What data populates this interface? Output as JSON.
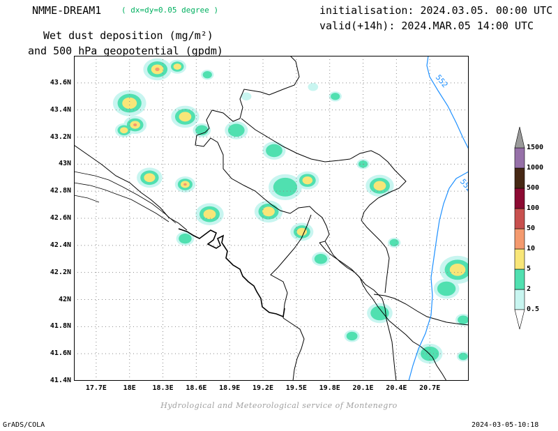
{
  "header": {
    "model": "NMME-DREAM1",
    "resolution": "( dx=dy=0.05 degree )",
    "initialisation": "initialisation: 2024.03.05. 00:00 UTC",
    "valid": "valid(+14h): 2024.MAR.05 14:00 UTC",
    "title_line1": "Wet dust deposition (mg/m²)",
    "title_line2": "and 500 hPa geopotential (gpdm)"
  },
  "map": {
    "lon_range": [
      17.5,
      21.05
    ],
    "lat_range": [
      41.4,
      43.8
    ],
    "lon_labels": [
      "17.7E",
      "18E",
      "18.3E",
      "18.6E",
      "18.9E",
      "19.2E",
      "19.5E",
      "19.8E",
      "20.1E",
      "20.4E",
      "20.7E"
    ],
    "lon_ticks": [
      17.7,
      18.0,
      18.3,
      18.6,
      18.9,
      19.2,
      19.5,
      19.8,
      20.1,
      20.4,
      20.7
    ],
    "lat_labels": [
      "41.4N",
      "41.6N",
      "41.8N",
      "42N",
      "42.2N",
      "42.4N",
      "42.6N",
      "42.8N",
      "43N",
      "43.2N",
      "43.4N",
      "43.6N"
    ],
    "lat_ticks": [
      41.4,
      41.6,
      41.8,
      42.0,
      42.2,
      42.4,
      42.6,
      42.8,
      43.0,
      43.2,
      43.4,
      43.6
    ],
    "contour_labels": [
      {
        "text": "552",
        "lon": 20.75,
        "lat": 43.64
      },
      {
        "text": "552",
        "lon": 20.97,
        "lat": 42.87
      }
    ],
    "contour_color": "#1e90ff",
    "grid": "dotted"
  },
  "deposition_blobs": [
    {
      "lon": 18.25,
      "lat": 43.7,
      "r": 0.11,
      "level": 4
    },
    {
      "lon": 18.43,
      "lat": 43.72,
      "r": 0.07,
      "level": 3
    },
    {
      "lon": 18.7,
      "lat": 43.66,
      "r": 0.05,
      "level": 2
    },
    {
      "lon": 18.0,
      "lat": 43.45,
      "r": 0.13,
      "level": 3
    },
    {
      "lon": 17.95,
      "lat": 43.25,
      "r": 0.07,
      "level": 3
    },
    {
      "lon": 18.05,
      "lat": 43.29,
      "r": 0.09,
      "level": 4
    },
    {
      "lon": 18.5,
      "lat": 43.35,
      "r": 0.11,
      "level": 3
    },
    {
      "lon": 18.65,
      "lat": 43.25,
      "r": 0.07,
      "level": 2
    },
    {
      "lon": 18.96,
      "lat": 43.25,
      "r": 0.09,
      "level": 2
    },
    {
      "lon": 19.3,
      "lat": 43.1,
      "r": 0.09,
      "level": 2
    },
    {
      "lon": 18.18,
      "lat": 42.9,
      "r": 0.1,
      "level": 3
    },
    {
      "lon": 18.5,
      "lat": 42.85,
      "r": 0.08,
      "level": 4
    },
    {
      "lon": 18.72,
      "lat": 42.63,
      "r": 0.11,
      "level": 3
    },
    {
      "lon": 18.5,
      "lat": 42.45,
      "r": 0.07,
      "level": 2
    },
    {
      "lon": 19.4,
      "lat": 42.83,
      "r": 0.13,
      "level": 2
    },
    {
      "lon": 19.6,
      "lat": 42.88,
      "r": 0.09,
      "level": 3
    },
    {
      "lon": 19.25,
      "lat": 42.65,
      "r": 0.11,
      "level": 3
    },
    {
      "lon": 19.55,
      "lat": 42.5,
      "r": 0.09,
      "level": 3
    },
    {
      "lon": 19.72,
      "lat": 42.3,
      "r": 0.07,
      "level": 2
    },
    {
      "lon": 20.25,
      "lat": 42.84,
      "r": 0.11,
      "level": 3
    },
    {
      "lon": 20.1,
      "lat": 43.0,
      "r": 0.05,
      "level": 2
    },
    {
      "lon": 20.38,
      "lat": 42.42,
      "r": 0.05,
      "level": 2
    },
    {
      "lon": 19.05,
      "lat": 43.5,
      "r": 0.04,
      "level": 1
    },
    {
      "lon": 19.85,
      "lat": 43.5,
      "r": 0.05,
      "level": 2
    },
    {
      "lon": 19.65,
      "lat": 43.57,
      "r": 0.04,
      "level": 1
    },
    {
      "lon": 20.95,
      "lat": 42.22,
      "r": 0.14,
      "level": 3
    },
    {
      "lon": 20.85,
      "lat": 42.08,
      "r": 0.1,
      "level": 2
    },
    {
      "lon": 20.25,
      "lat": 41.9,
      "r": 0.1,
      "level": 2
    },
    {
      "lon": 20.0,
      "lat": 41.73,
      "r": 0.06,
      "level": 2
    },
    {
      "lon": 20.7,
      "lat": 41.6,
      "r": 0.1,
      "level": 2
    },
    {
      "lon": 21.0,
      "lat": 41.58,
      "r": 0.05,
      "level": 2
    },
    {
      "lon": 21.0,
      "lat": 41.85,
      "r": 0.06,
      "level": 2
    }
  ],
  "colorbar": {
    "levels": [
      "0.5",
      "2",
      "5",
      "10",
      "50",
      "100",
      "500",
      "1000",
      "1500"
    ],
    "colors": [
      "#c8f5f0",
      "#50e0b0",
      "#f8e678",
      "#f49a6e",
      "#c8504e",
      "#8c0a32",
      "#462814",
      "#9670a8",
      "#9a9a9a"
    ]
  },
  "credit": "Hydrological and Meteorological service of Montenegro",
  "footer": {
    "left": "GrADS/COLA",
    "right": "2024-03-05-10:18"
  }
}
